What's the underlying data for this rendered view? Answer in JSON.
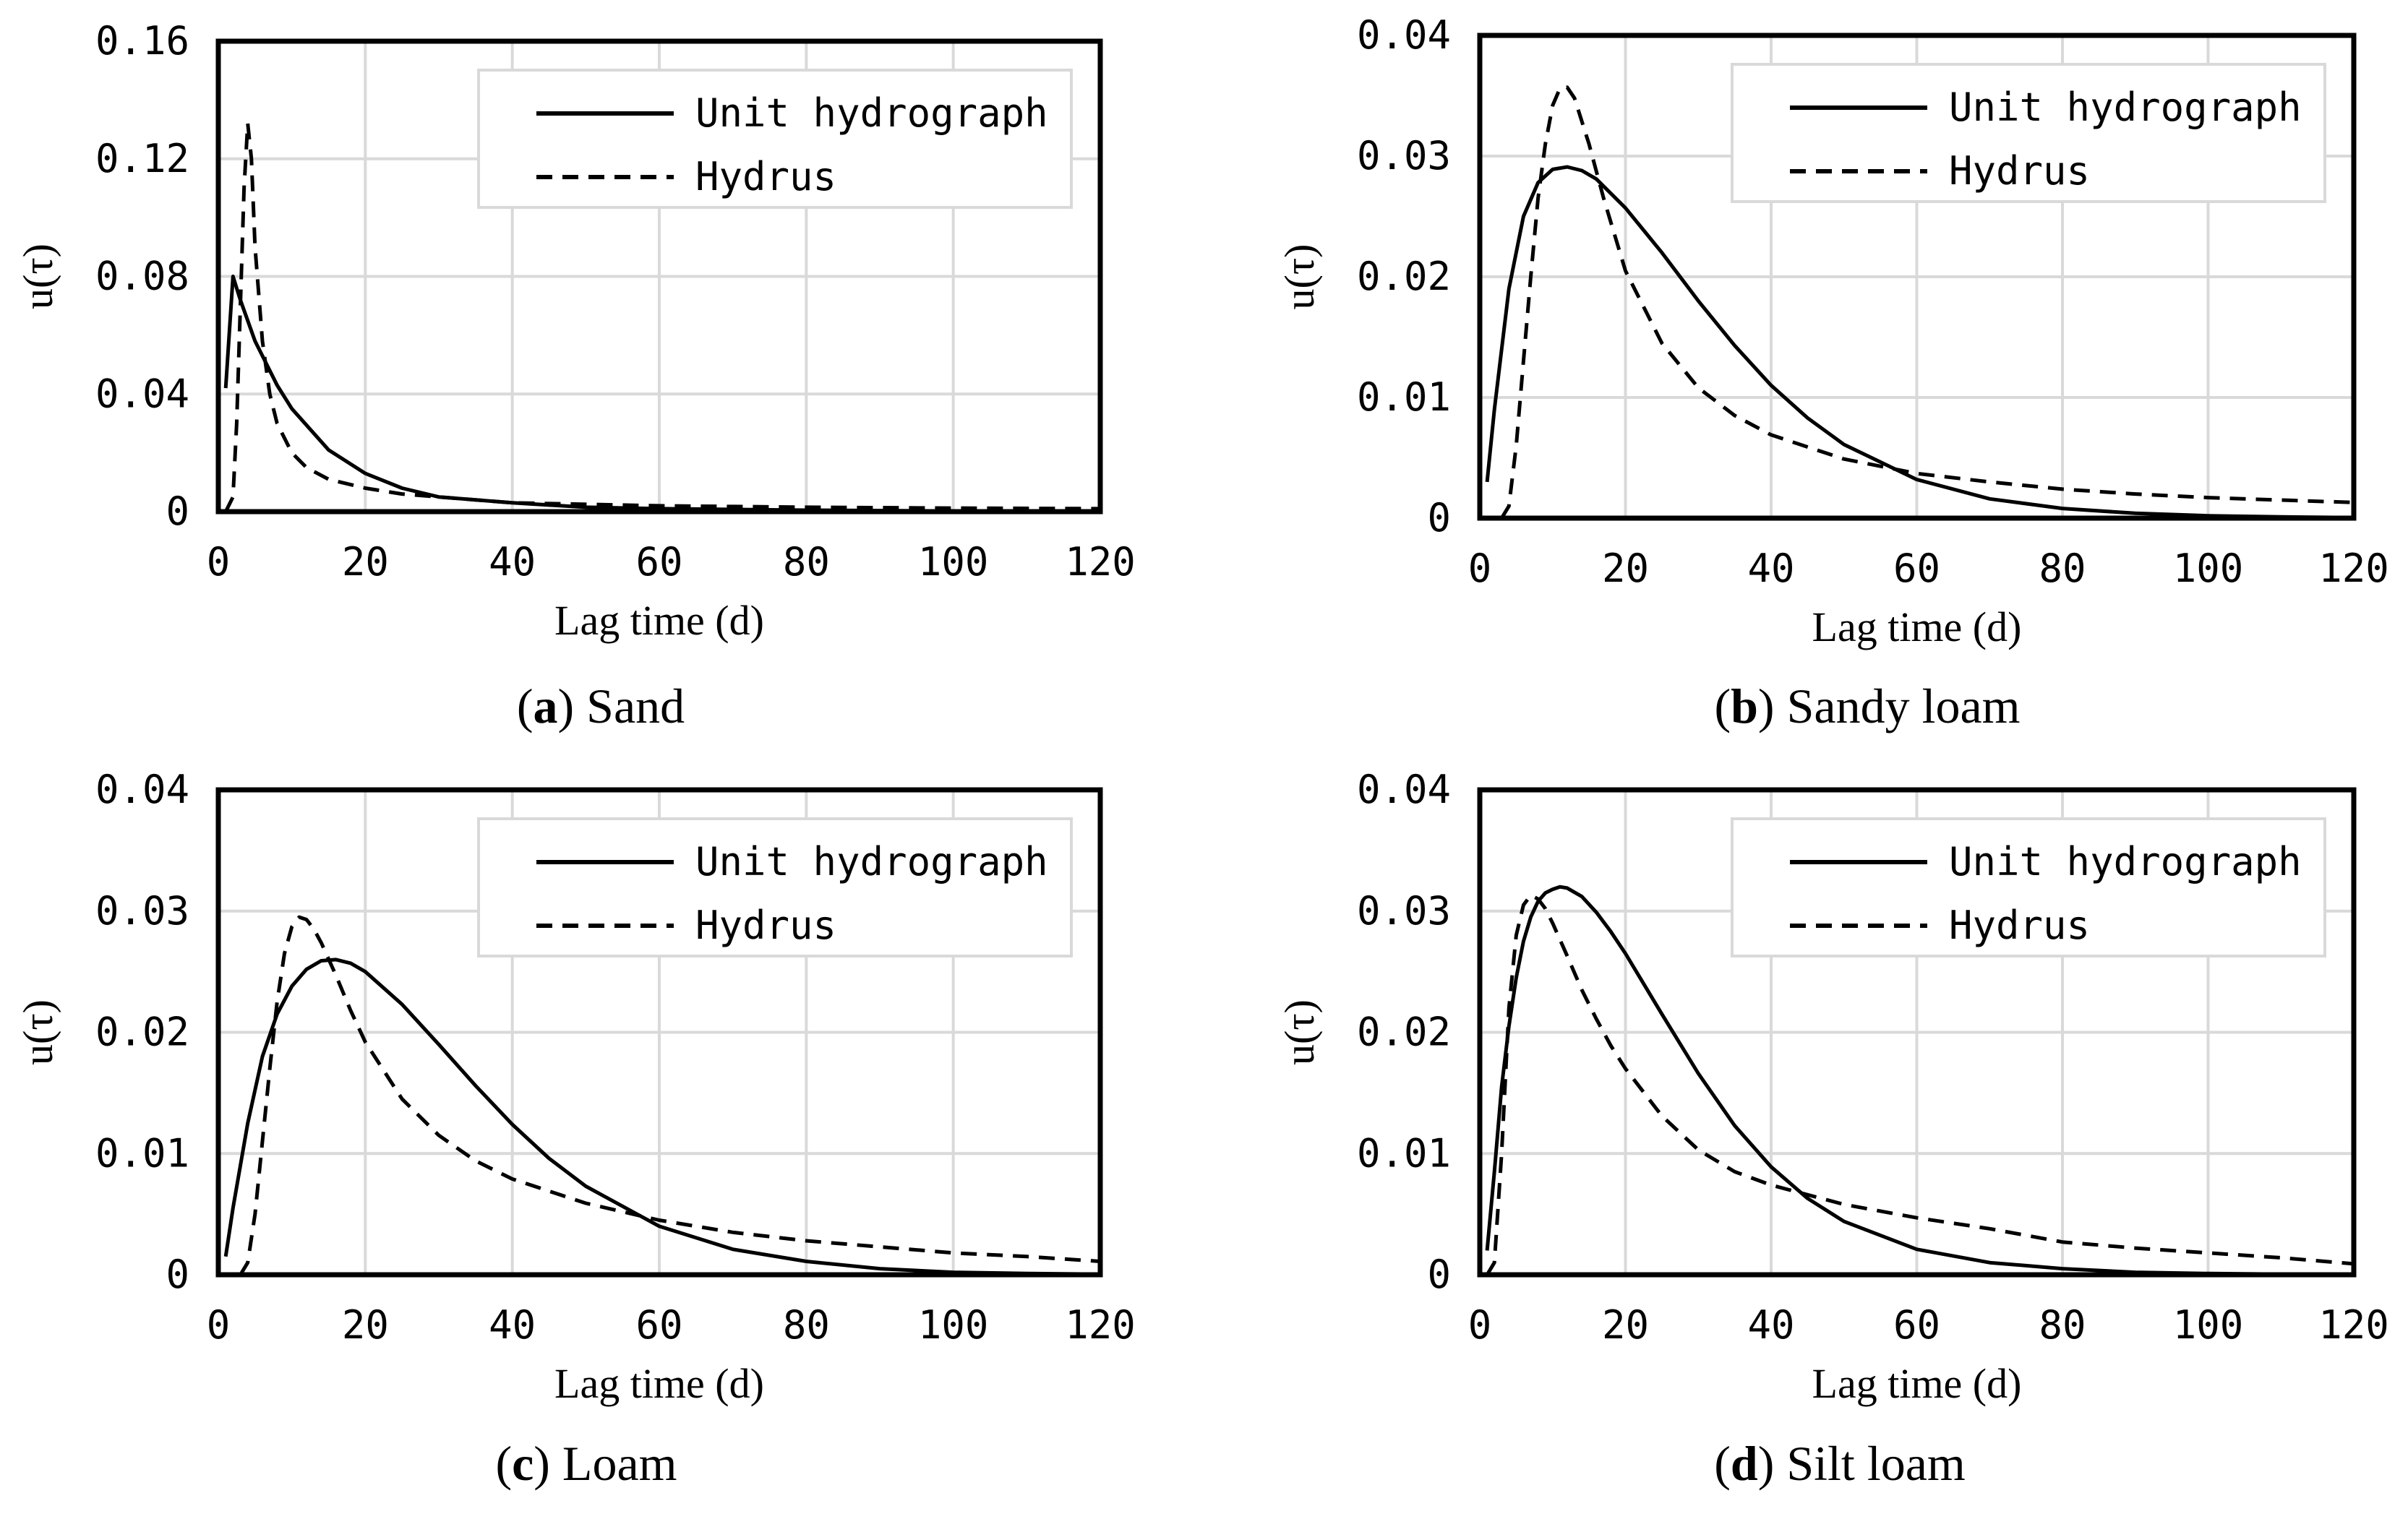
{
  "figure": {
    "description_labels": [
      "a",
      "b",
      "c",
      "d"
    ]
  },
  "chart_data": [
    {
      "type": "line",
      "panel_letter": "a",
      "panel_name": "Sand",
      "title": "(a) Sand",
      "xlabel": "Lag time (d)",
      "ylabel": "u(τ)",
      "xlim": [
        0,
        120
      ],
      "ylim": [
        0,
        0.16
      ],
      "xticks": [
        0,
        20,
        40,
        60,
        80,
        100,
        120
      ],
      "xtick_labels": [
        "0",
        "20",
        "40",
        "60",
        "80",
        "100",
        "120"
      ],
      "yticks": [
        0,
        0.04,
        0.08,
        0.12,
        0.16
      ],
      "ytick_labels": [
        "0",
        "0.04",
        "0.08",
        "0.12",
        "0.16"
      ],
      "grid": true,
      "legend_position": "top-right",
      "series": [
        {
          "name": "Unit hydrograph",
          "style": "solid",
          "color": "#000000",
          "x": [
            1,
            2,
            3,
            5,
            8,
            10,
            15,
            20,
            25,
            30,
            35,
            40,
            50,
            60,
            80,
            100,
            120
          ],
          "y": [
            0.042,
            0.08,
            0.072,
            0.058,
            0.043,
            0.035,
            0.021,
            0.013,
            0.008,
            0.005,
            0.004,
            0.003,
            0.0015,
            0.001,
            0.0005,
            0.0002,
            0.0001
          ]
        },
        {
          "name": "Hydrus",
          "style": "dashed",
          "color": "#000000",
          "x": [
            1,
            2,
            2.5,
            3,
            3.5,
            4,
            4.5,
            5,
            6,
            7,
            8,
            10,
            12,
            15,
            20,
            25,
            30,
            40,
            60,
            80,
            100,
            120
          ],
          "y": [
            0.0,
            0.005,
            0.03,
            0.07,
            0.11,
            0.132,
            0.12,
            0.09,
            0.058,
            0.04,
            0.03,
            0.02,
            0.015,
            0.011,
            0.008,
            0.006,
            0.005,
            0.003,
            0.002,
            0.0015,
            0.0012,
            0.001
          ]
        }
      ]
    },
    {
      "type": "line",
      "panel_letter": "b",
      "panel_name": "Sandy loam",
      "title": "(b) Sandy loam",
      "xlabel": "Lag time (d)",
      "ylabel": "u(τ)",
      "xlim": [
        0,
        120
      ],
      "ylim": [
        0,
        0.04
      ],
      "xticks": [
        0,
        20,
        40,
        60,
        80,
        100,
        120
      ],
      "xtick_labels": [
        "0",
        "20",
        "40",
        "60",
        "80",
        "100",
        "120"
      ],
      "yticks": [
        0,
        0.01,
        0.02,
        0.03,
        0.04
      ],
      "ytick_labels": [
        "0",
        "0.01",
        "0.02",
        "0.03",
        "0.04"
      ],
      "grid": true,
      "legend_position": "top-right",
      "series": [
        {
          "name": "Unit hydrograph",
          "style": "solid",
          "color": "#000000",
          "x": [
            1,
            2,
            4,
            6,
            8,
            10,
            12,
            14,
            16,
            20,
            25,
            30,
            35,
            40,
            45,
            50,
            60,
            70,
            80,
            90,
            100,
            110,
            120
          ],
          "y": [
            0.003,
            0.009,
            0.019,
            0.025,
            0.0278,
            0.0289,
            0.0291,
            0.0288,
            0.0281,
            0.0257,
            0.022,
            0.018,
            0.0143,
            0.011,
            0.0083,
            0.0061,
            0.0032,
            0.0016,
            0.0008,
            0.0004,
            0.0002,
            0.0001,
            5e-05
          ]
        },
        {
          "name": "Hydrus",
          "style": "dashed",
          "color": "#000000",
          "x": [
            3,
            4,
            5,
            6,
            7,
            8,
            9,
            10,
            11,
            12,
            13,
            15,
            17,
            20,
            25,
            30,
            35,
            40,
            50,
            60,
            70,
            80,
            90,
            100,
            110,
            120
          ],
          "y": [
            0.0,
            0.001,
            0.006,
            0.013,
            0.02,
            0.0265,
            0.031,
            0.0342,
            0.0356,
            0.0357,
            0.0348,
            0.031,
            0.0265,
            0.0205,
            0.0145,
            0.0108,
            0.0085,
            0.0069,
            0.0049,
            0.0037,
            0.003,
            0.0024,
            0.002,
            0.0017,
            0.0015,
            0.0013
          ]
        }
      ]
    },
    {
      "type": "line",
      "panel_letter": "c",
      "panel_name": "Loam",
      "title": "(c) Loam",
      "xlabel": "Lag time (d)",
      "ylabel": "u(τ)",
      "xlim": [
        0,
        120
      ],
      "ylim": [
        0,
        0.04
      ],
      "xticks": [
        0,
        20,
        40,
        60,
        80,
        100,
        120
      ],
      "xtick_labels": [
        "0",
        "20",
        "40",
        "60",
        "80",
        "100",
        "120"
      ],
      "yticks": [
        0,
        0.01,
        0.02,
        0.03,
        0.04
      ],
      "ytick_labels": [
        "0",
        "0.01",
        "0.02",
        "0.03",
        "0.04"
      ],
      "grid": true,
      "legend_position": "top-right",
      "series": [
        {
          "name": "Unit hydrograph",
          "style": "solid",
          "color": "#000000",
          "x": [
            1,
            2,
            4,
            6,
            8,
            10,
            12,
            14,
            16,
            18,
            20,
            25,
            30,
            35,
            40,
            45,
            50,
            60,
            70,
            80,
            90,
            100,
            110,
            120
          ],
          "y": [
            0.0015,
            0.0055,
            0.0125,
            0.018,
            0.0215,
            0.0238,
            0.0252,
            0.0259,
            0.026,
            0.0257,
            0.025,
            0.0223,
            0.019,
            0.0156,
            0.0124,
            0.0096,
            0.0073,
            0.004,
            0.0021,
            0.0011,
            0.0005,
            0.0002,
            0.0001,
            5e-05
          ]
        },
        {
          "name": "Hydrus",
          "style": "dashed",
          "color": "#000000",
          "x": [
            3,
            4,
            5,
            6,
            7,
            8,
            9,
            10,
            11,
            12,
            13,
            14,
            16,
            18,
            20,
            25,
            30,
            35,
            40,
            50,
            60,
            70,
            80,
            90,
            100,
            110,
            120
          ],
          "y": [
            0.0,
            0.001,
            0.005,
            0.011,
            0.017,
            0.0225,
            0.0265,
            0.0287,
            0.0295,
            0.0293,
            0.0285,
            0.0274,
            0.0247,
            0.0218,
            0.0192,
            0.0145,
            0.0115,
            0.0094,
            0.0079,
            0.0059,
            0.0045,
            0.0035,
            0.0028,
            0.0023,
            0.0018,
            0.0015,
            0.0011
          ]
        }
      ]
    },
    {
      "type": "line",
      "panel_letter": "d",
      "panel_name": "Silt loam",
      "title": "(d) Silt loam",
      "xlabel": "Lag time (d)",
      "ylabel": "u(τ)",
      "xlim": [
        0,
        120
      ],
      "ylim": [
        0,
        0.04
      ],
      "xticks": [
        0,
        20,
        40,
        60,
        80,
        100,
        120
      ],
      "xtick_labels": [
        "0",
        "20",
        "40",
        "60",
        "80",
        "100",
        "120"
      ],
      "yticks": [
        0,
        0.01,
        0.02,
        0.03,
        0.04
      ],
      "ytick_labels": [
        "0",
        "0.01",
        "0.02",
        "0.03",
        "0.04"
      ],
      "grid": true,
      "legend_position": "top-right",
      "series": [
        {
          "name": "Unit hydrograph",
          "style": "solid",
          "color": "#000000",
          "x": [
            1,
            2,
            3,
            4,
            5,
            6,
            7,
            8,
            9,
            10,
            11,
            12,
            14,
            16,
            18,
            20,
            25,
            30,
            35,
            40,
            45,
            50,
            60,
            70,
            80,
            90,
            100,
            110,
            120
          ],
          "y": [
            0.002,
            0.0085,
            0.0155,
            0.0205,
            0.0245,
            0.0275,
            0.0295,
            0.0308,
            0.0315,
            0.0318,
            0.032,
            0.0319,
            0.0312,
            0.0299,
            0.0283,
            0.0265,
            0.0215,
            0.0166,
            0.0123,
            0.0089,
            0.0063,
            0.0044,
            0.0021,
            0.001,
            0.0005,
            0.0002,
            0.0001,
            5e-05,
            2e-05
          ]
        },
        {
          "name": "Hydrus",
          "style": "dashed",
          "color": "#000000",
          "x": [
            1,
            2,
            3,
            4,
            5,
            6,
            7,
            8,
            9,
            10,
            12,
            14,
            16,
            18,
            20,
            25,
            30,
            35,
            40,
            45,
            50,
            60,
            70,
            80,
            90,
            100,
            110,
            120
          ],
          "y": [
            0.0,
            0.001,
            0.01,
            0.022,
            0.028,
            0.0305,
            0.0313,
            0.031,
            0.0302,
            0.029,
            0.0263,
            0.0235,
            0.0211,
            0.0189,
            0.017,
            0.0131,
            0.0103,
            0.0085,
            0.0074,
            0.0066,
            0.0058,
            0.0047,
            0.0038,
            0.0027,
            0.0022,
            0.0018,
            0.0014,
            0.0009
          ]
        }
      ]
    }
  ]
}
